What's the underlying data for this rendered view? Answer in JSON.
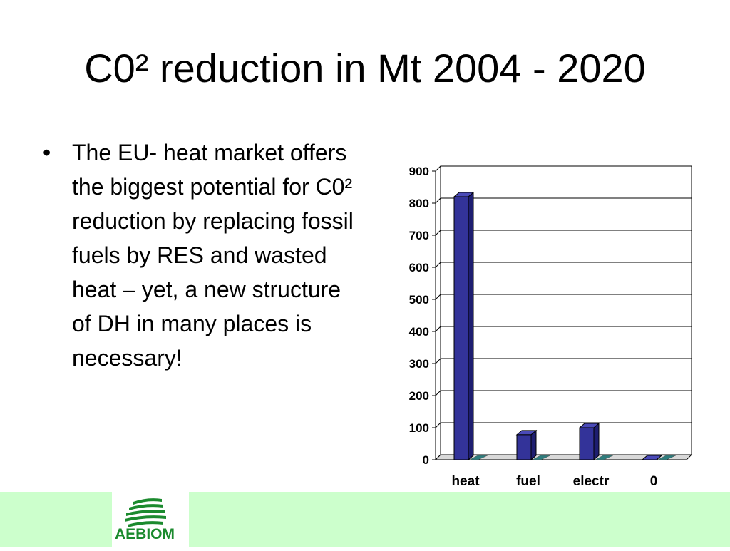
{
  "slide": {
    "title": "C0² reduction in Mt 2004 - 2020",
    "bullet_text": "The EU- heat market offers the biggest potential for C0² reduction by replacing fossil fuels by RES and wasted heat – yet, a new structure of DH in many places is necessary!"
  },
  "logo": {
    "text": "AEBIOM",
    "color": "#1b8a2e"
  },
  "colors": {
    "footer_band": "#ccffcc",
    "bar_front": "#333399",
    "bar_top": "#4a4ab8",
    "bar_side": "#1e1e70",
    "gridline": "#000000"
  },
  "chart_data": {
    "type": "bar",
    "categories": [
      "heat",
      "fuel",
      "electr",
      "0"
    ],
    "values": [
      820,
      78,
      100,
      0
    ],
    "yticks": [
      0,
      100,
      200,
      300,
      400,
      500,
      600,
      700,
      800,
      900
    ],
    "ylim": [
      0,
      900
    ],
    "grid": true,
    "title": "",
    "xlabel": "",
    "ylabel": ""
  }
}
